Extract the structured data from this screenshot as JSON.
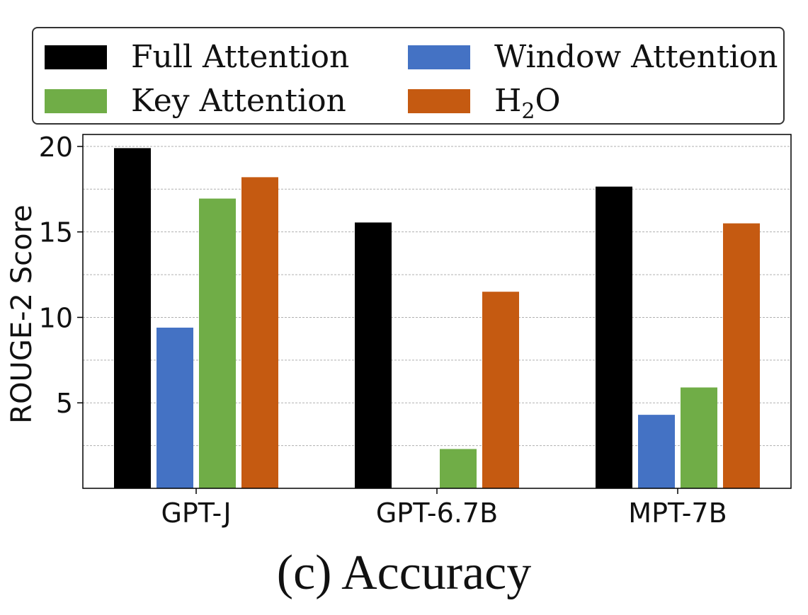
{
  "chart_data": {
    "type": "bar",
    "categories": [
      "GPT-J",
      "GPT-6.7B",
      "MPT-7B"
    ],
    "series": [
      {
        "name": "Full Attention",
        "values": [
          19.9,
          15.55,
          17.65
        ],
        "color": "#000000"
      },
      {
        "name": "Window Attention",
        "values": [
          9.4,
          0,
          4.3
        ],
        "color": "#4472c4"
      },
      {
        "name": "Key Attention",
        "values": [
          16.95,
          2.3,
          5.9
        ],
        "color": "#70ad47"
      },
      {
        "name": "H2O",
        "values": [
          18.2,
          11.5,
          15.5
        ],
        "color": "#c55a11"
      }
    ],
    "ylabel": "ROUGE-2 Score",
    "ylim": [
      0,
      20.7
    ],
    "yticks": [
      5,
      10,
      15,
      20
    ],
    "ytick_labels": [
      "5",
      "10",
      "15",
      "20"
    ],
    "grid": true,
    "legend_position": "top",
    "legend": {
      "full": "Full Attention",
      "window": "Window Attention",
      "key": "Key Attention",
      "h2o_main": "H",
      "h2o_sub": "2",
      "h2o_tail": "O"
    }
  },
  "caption": "(c) Accuracy"
}
